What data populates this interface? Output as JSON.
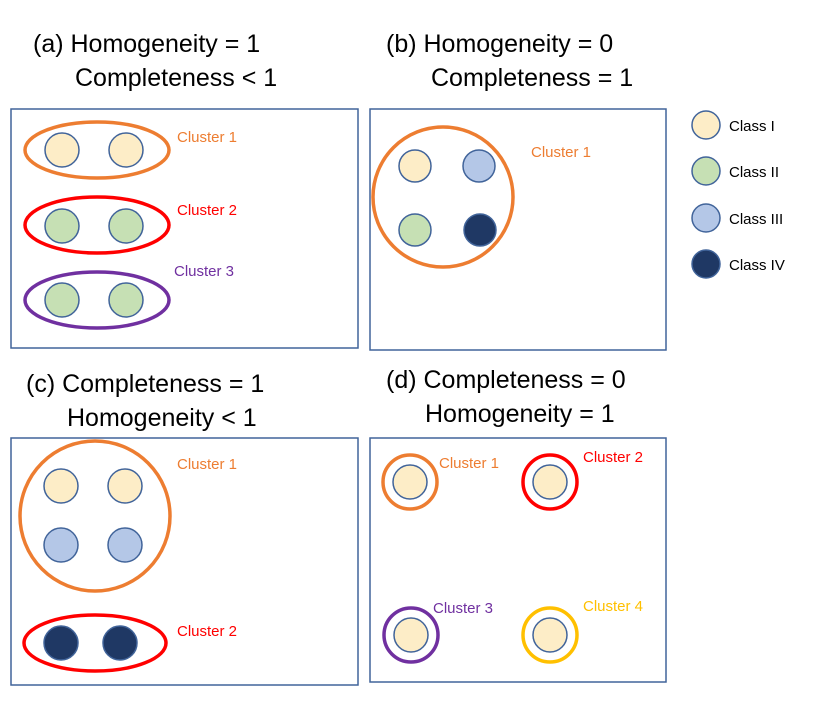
{
  "panels": {
    "a": {
      "title_line1": "(a) Homogeneity = 1",
      "title_line2": "Completeness < 1",
      "cluster_1": "Cluster 1",
      "cluster_2": "Cluster 2",
      "cluster_3": "Cluster 3"
    },
    "b": {
      "title_line1": "(b) Homogeneity = 0",
      "title_line2": "Completeness = 1",
      "cluster_1": "Cluster 1"
    },
    "c": {
      "title_line1": "(c) Completeness = 1",
      "title_line2": "Homogeneity < 1",
      "cluster_1": "Cluster 1",
      "cluster_2": "Cluster 2"
    },
    "d": {
      "title_line1": "(d) Completeness = 0",
      "title_line2": "Homogeneity = 1",
      "cluster_1": "Cluster 1",
      "cluster_2": "Cluster 2",
      "cluster_3": "Cluster 3",
      "cluster_4": "Cluster 4"
    }
  },
  "legend": [
    {
      "label": "Class I",
      "color": "#fdedc7"
    },
    {
      "label": "Class II",
      "color": "#c6e0b4"
    },
    {
      "label": "Class III",
      "color": "#b4c7e7"
    },
    {
      "label": "Class IV",
      "color": "#1f3864"
    }
  ],
  "colors": {
    "frame": "#41649a",
    "cluster_orange": "#ed7d31",
    "cluster_red": "#ff0000",
    "cluster_purple": "#7030a0",
    "cluster_gold": "#ffc000",
    "class_i": "#fdedc7",
    "class_ii": "#c6e0b4",
    "class_iii": "#b4c7e7",
    "class_iv": "#1f3864"
  }
}
